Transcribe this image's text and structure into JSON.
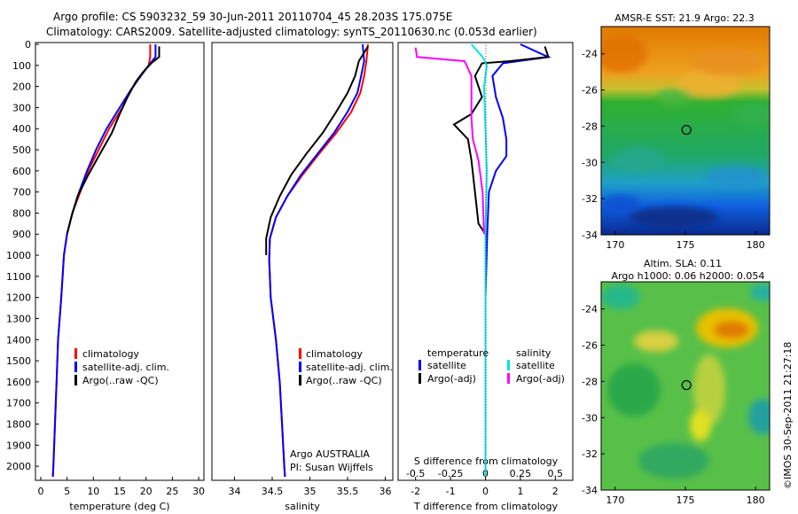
{
  "title": {
    "line1": "Argo profile: CS 5903232_59 30-Jun-2011 20110704_45 28.203S 175.075E",
    "line2": "Climatology: CARS2009. Satellite-adjusted climatology: synTS_20110630.nc (0.053d earlier)"
  },
  "colors": {
    "climatology": "#ff0000",
    "satellite": "#0000ff",
    "argo": "#000000",
    "sal_satellite": "#00e5e5",
    "sal_argo": "#ff00ff"
  },
  "chart_data": [
    {
      "type": "line",
      "id": "temperature",
      "xlabel": "temperature (deg C)",
      "xlim": [
        -1,
        31
      ],
      "ylim": [
        0,
        2050
      ],
      "xticks": [
        "0",
        "5",
        "10",
        "15",
        "20",
        "25",
        "30"
      ],
      "yticks": [
        "0",
        "100",
        "200",
        "300",
        "400",
        "500",
        "600",
        "700",
        "800",
        "900",
        "1000",
        "1100",
        "1200",
        "1300",
        "1400",
        "1500",
        "1600",
        "1700",
        "1800",
        "1900",
        "2000"
      ],
      "legend": [
        "climatology",
        "satellite-adj. clim.",
        "Argo(..raw -QC)"
      ],
      "series": [
        {
          "name": "climatology",
          "points": [
            [
              20.8,
              0
            ],
            [
              20.8,
              60
            ],
            [
              20.5,
              100
            ],
            [
              19,
              150
            ],
            [
              17,
              220
            ],
            [
              15.5,
              300
            ],
            [
              13,
              400
            ],
            [
              11,
              500
            ],
            [
              9,
              600
            ],
            [
              7.5,
              700
            ],
            [
              6,
              800
            ],
            [
              5,
              900
            ],
            [
              4.4,
              1000
            ],
            [
              3.9,
              1200
            ],
            [
              3.3,
              1400
            ],
            [
              3,
              1600
            ],
            [
              2.7,
              1800
            ],
            [
              2.4,
              2000
            ],
            [
              2.3,
              2050
            ]
          ]
        },
        {
          "name": "satellite-adj. clim.",
          "points": [
            [
              21.8,
              0
            ],
            [
              21.8,
              60
            ],
            [
              20.5,
              100
            ],
            [
              19,
              150
            ],
            [
              17,
              220
            ],
            [
              15,
              300
            ],
            [
              12.5,
              400
            ],
            [
              10.5,
              500
            ],
            [
              8.8,
              600
            ],
            [
              7.3,
              700
            ],
            [
              6,
              800
            ],
            [
              5,
              900
            ],
            [
              4.4,
              1000
            ],
            [
              3.9,
              1200
            ],
            [
              3.3,
              1400
            ],
            [
              3,
              1600
            ],
            [
              2.7,
              1800
            ],
            [
              2.4,
              2000
            ],
            [
              2.3,
              2050
            ]
          ]
        },
        {
          "name": "Argo(..raw -QC)",
          "points": [
            [
              22.5,
              10
            ],
            [
              22.5,
              60
            ],
            [
              21,
              90
            ],
            [
              19.5,
              130
            ],
            [
              18,
              180
            ],
            [
              16.5,
              250
            ],
            [
              15,
              330
            ],
            [
              13.5,
              420
            ],
            [
              11,
              530
            ],
            [
              9,
              620
            ],
            [
              7,
              720
            ],
            [
              5.8,
              820
            ],
            [
              5,
              900
            ]
          ]
        }
      ]
    },
    {
      "type": "line",
      "id": "salinity",
      "xlabel": "salinity",
      "xlim": [
        33.7,
        36.1
      ],
      "ylim": [
        0,
        2050
      ],
      "xticks": [
        "34",
        "34.5",
        "35",
        "35.5",
        "36"
      ],
      "legend": [
        "climatology",
        "satellite-adj. clim.",
        "Argo(..raw -QC)"
      ],
      "annotation": [
        "Argo AUSTRALIA",
        "PI: Susan Wijffels"
      ],
      "series": [
        {
          "name": "climatology",
          "points": [
            [
              35.77,
              0
            ],
            [
              35.75,
              80
            ],
            [
              35.72,
              150
            ],
            [
              35.67,
              230
            ],
            [
              35.55,
              320
            ],
            [
              35.35,
              420
            ],
            [
              35.12,
              520
            ],
            [
              34.9,
              620
            ],
            [
              34.7,
              720
            ],
            [
              34.55,
              820
            ],
            [
              34.47,
              920
            ],
            [
              34.46,
              1020
            ],
            [
              34.48,
              1200
            ],
            [
              34.55,
              1400
            ],
            [
              34.6,
              1600
            ],
            [
              34.63,
              1800
            ],
            [
              34.66,
              2000
            ],
            [
              34.67,
              2050
            ]
          ]
        },
        {
          "name": "satellite-adj. clim.",
          "points": [
            [
              35.7,
              0
            ],
            [
              35.72,
              80
            ],
            [
              35.68,
              150
            ],
            [
              35.63,
              230
            ],
            [
              35.5,
              320
            ],
            [
              35.32,
              420
            ],
            [
              35.1,
              520
            ],
            [
              34.88,
              620
            ],
            [
              34.7,
              720
            ],
            [
              34.55,
              820
            ],
            [
              34.47,
              920
            ],
            [
              34.46,
              1020
            ],
            [
              34.48,
              1200
            ],
            [
              34.55,
              1400
            ],
            [
              34.6,
              1600
            ],
            [
              34.63,
              1800
            ],
            [
              34.66,
              2000
            ],
            [
              34.67,
              2050
            ]
          ]
        },
        {
          "name": "Argo(..raw -QC)",
          "points": [
            [
              35.77,
              10
            ],
            [
              35.65,
              80
            ],
            [
              35.6,
              150
            ],
            [
              35.5,
              230
            ],
            [
              35.35,
              320
            ],
            [
              35.17,
              420
            ],
            [
              34.95,
              520
            ],
            [
              34.75,
              620
            ],
            [
              34.6,
              720
            ],
            [
              34.48,
              820
            ],
            [
              34.42,
              920
            ],
            [
              34.42,
              1000
            ]
          ]
        }
      ]
    },
    {
      "type": "line",
      "id": "difference",
      "xlabel_top": "S difference from climatology",
      "xticks_top": [
        "-0.5",
        "-0.25",
        "0",
        "0.25",
        "0.5"
      ],
      "xlabel": "T difference from climatology",
      "xticks": [
        "-2",
        "-1",
        "0",
        "1",
        "2"
      ],
      "xlim": [
        -2.5,
        2.5
      ],
      "ylim": [
        0,
        2050
      ],
      "legend_left": {
        "title": "temperature",
        "items": [
          "satellite",
          "Argo(-adj)"
        ]
      },
      "legend_right": {
        "title": "salinity",
        "items": [
          "satellite",
          "Argo(-adj)"
        ]
      },
      "series": [
        {
          "name": "temperature satellite",
          "points": [
            [
              1.0,
              0
            ],
            [
              1.8,
              60
            ],
            [
              0.5,
              90
            ],
            [
              0.2,
              150
            ],
            [
              0.3,
              250
            ],
            [
              0.5,
              350
            ],
            [
              0.6,
              450
            ],
            [
              0.6,
              530
            ],
            [
              0.3,
              600
            ],
            [
              0.1,
              700
            ],
            [
              0.05,
              900
            ],
            [
              0,
              1200
            ],
            [
              0,
              2050
            ]
          ]
        },
        {
          "name": "temperature Argo(-adj)",
          "points": [
            [
              1.7,
              10
            ],
            [
              1.8,
              60
            ],
            [
              0.7,
              80
            ],
            [
              -0.1,
              90
            ],
            [
              -0.3,
              150
            ],
            [
              -0.1,
              250
            ],
            [
              -0.4,
              330
            ],
            [
              -0.9,
              380
            ],
            [
              -0.5,
              450
            ],
            [
              -0.4,
              550
            ],
            [
              -0.3,
              700
            ],
            [
              -0.2,
              850
            ],
            [
              0,
              900
            ]
          ]
        },
        {
          "name": "salinity satellite",
          "points": [
            [
              -0.1,
              0
            ],
            [
              -0.02,
              60
            ],
            [
              0.01,
              100
            ],
            [
              -0.01,
              200
            ],
            [
              0,
              400
            ],
            [
              0.01,
              600
            ],
            [
              0,
              900
            ],
            [
              0,
              1200
            ],
            [
              0,
              2050
            ]
          ]
        },
        {
          "name": "salinity Argo(-adj)",
          "points": [
            [
              -0.5,
              15
            ],
            [
              -0.49,
              60
            ],
            [
              -0.15,
              80
            ],
            [
              -0.1,
              150
            ],
            [
              -0.1,
              250
            ],
            [
              -0.1,
              350
            ],
            [
              -0.09,
              450
            ],
            [
              -0.05,
              550
            ],
            [
              -0.02,
              700
            ],
            [
              -0.01,
              900
            ]
          ]
        }
      ]
    },
    {
      "type": "heatmap",
      "id": "sst-map",
      "title": "AMSR-E SST: 21.9 Argo: 22.3",
      "xlim": [
        169,
        181
      ],
      "ylim": [
        -34,
        -22.5
      ],
      "xticks": [
        "170",
        "175",
        "180"
      ],
      "yticks": [
        "-24",
        "-26",
        "-28",
        "-30",
        "-32",
        "-34"
      ],
      "marker": [
        175.075,
        -28.203
      ]
    },
    {
      "type": "heatmap",
      "id": "sla-map",
      "title": [
        "Altim. SLA: 0.11",
        "Argo h1000: 0.06 h2000: 0.054"
      ],
      "xlim": [
        169,
        181
      ],
      "ylim": [
        -34,
        -22.5
      ],
      "xticks": [
        "170",
        "175",
        "180"
      ],
      "yticks": [
        "-24",
        "-26",
        "-28",
        "-30",
        "-32",
        "-34"
      ],
      "marker": [
        175.075,
        -28.203
      ]
    }
  ],
  "watermark": "©IMOS 30-Sep-2011 21:27:18"
}
